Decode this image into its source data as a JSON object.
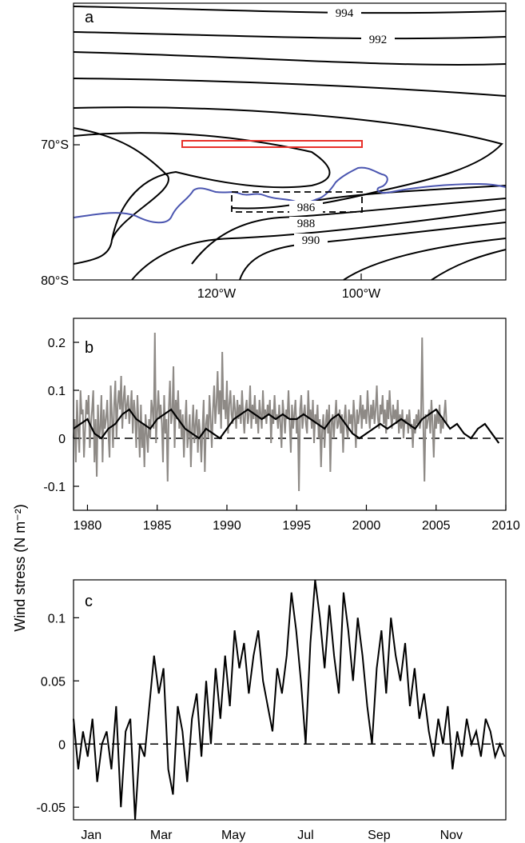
{
  "colors": {
    "contour": "#000000",
    "coast": "#4a55b0",
    "box": "#e8312a",
    "gray_series": "#8e8a86",
    "black_series": "#000000"
  },
  "shared_ylabel": "Wind stress (N m⁻²)",
  "chart_data": [
    {
      "panel": "a",
      "type": "contour-map",
      "lat_ticks": [
        "70°S",
        "80°S"
      ],
      "lon_ticks": [
        "120°W",
        "100°W"
      ],
      "contour_labels": [
        "994",
        "992",
        "986",
        "988",
        "990"
      ],
      "boxes": [
        {
          "style": "solid",
          "color": "red",
          "lon": [
            -125,
            -100
          ],
          "lat": [
            -70.2,
            -69.8
          ]
        },
        {
          "style": "dashed",
          "color": "black",
          "lon": [
            -118,
            -100
          ],
          "lat": [
            -75,
            -73.5
          ]
        }
      ]
    },
    {
      "panel": "b",
      "type": "line",
      "xlim": [
        1979,
        2010
      ],
      "ylim": [
        -0.15,
        0.25
      ],
      "xticks": [
        1980,
        1985,
        1990,
        1995,
        2000,
        2005,
        2010
      ],
      "yticks": [
        -0.1,
        0,
        0.1,
        0.2
      ],
      "ytick_labels": [
        "-0.1",
        "0",
        "0.1",
        "0.2"
      ],
      "zero_line": "dashed",
      "series": [
        {
          "role": "monthly",
          "color": "gray",
          "x_start": 1979.0,
          "x_step": 0.08333,
          "values": [
            0.0,
            0.04,
            -0.05,
            0.08,
            0.02,
            -0.03,
            0.1,
            0.05,
            0.06,
            -0.04,
            0.02,
            0.08,
            0.05,
            0.09,
            -0.02,
            0.03,
            0.06,
            0.1,
            -0.05,
            0.04,
            -0.08,
            0.07,
            0.0,
            0.02,
            0.09,
            -0.05,
            0.06,
            0.02,
            0.04,
            0.08,
            0.01,
            -0.04,
            0.11,
            0.05,
            -0.02,
            0.07,
            0.12,
            0.0,
            0.07,
            0.1,
            0.06,
            0.13,
            0.02,
            0.08,
            0.11,
            0.04,
            0.07,
            0.09,
            0.03,
            0.06,
            0.1,
            0.01,
            0.08,
            0.05,
            -0.02,
            0.09,
            0.03,
            -0.04,
            0.07,
            -0.02,
            0.03,
            -0.06,
            0.05,
            0.01,
            -0.03,
            0.04,
            0.0,
            0.08,
            0.06,
            0.02,
            0.22,
            -0.01,
            0.05,
            0.1,
            0.04,
            0.07,
            0.03,
            -0.05,
            0.09,
            0.01,
            0.04,
            -0.09,
            0.06,
            0.12,
            0.03,
            0.05,
            0.15,
            -0.02,
            0.08,
            0.04,
            0.1,
            0.02,
            0.06,
            0.0,
            0.05,
            -0.04,
            0.03,
            0.08,
            -0.02,
            0.01,
            0.05,
            -0.06,
            0.02,
            0.07,
            -0.01,
            0.03,
            0.06,
            -0.03,
            0.04,
            0.01,
            -0.05,
            0.02,
            0.08,
            -0.07,
            0.03,
            0.05,
            0.0,
            0.09,
            0.04,
            -0.02,
            0.06,
            0.11,
            0.03,
            0.07,
            0.14,
            0.05,
            0.1,
            0.02,
            0.18,
            0.06,
            0.08,
            0.04,
            0.12,
            0.01,
            0.07,
            0.1,
            0.05,
            0.03,
            0.09,
            0.06,
            0.02,
            0.08,
            0.04,
            0.07,
            0.03,
            0.1,
            0.05,
            0.01,
            0.06,
            0.08,
            0.03,
            0.05,
            0.11,
            0.02,
            0.07,
            0.04,
            0.09,
            0.03,
            0.06,
            0.01,
            0.08,
            0.05,
            0.02,
            0.1,
            0.04,
            0.06,
            0.03,
            0.07,
            0.05,
            0.08,
            -0.01,
            0.06,
            0.03,
            0.09,
            0.04,
            0.05,
            0.02,
            0.07,
            0.03,
            -0.02,
            0.08,
            0.05,
            0.01,
            0.06,
            0.04,
            0.1,
            0.03,
            -0.03,
            0.07,
            0.02,
            0.05,
            0.08,
            0.01,
            0.04,
            -0.11,
            0.06,
            0.09,
            0.02,
            0.05,
            0.07,
            0.03,
            0.01,
            0.1,
            0.04,
            0.06,
            0.02,
            0.08,
            -0.01,
            0.05,
            0.03,
            0.07,
            0.0,
            0.04,
            -0.06,
            0.02,
            0.05,
            -0.02,
            0.03,
            0.06,
            0.01,
            0.07,
            -0.07,
            0.03,
            0.05,
            0.0,
            0.04,
            0.08,
            0.02,
            0.03,
            0.06,
            0.01,
            0.05,
            -0.03,
            0.04,
            0.07,
            0.02,
            0.0,
            0.06,
            0.03,
            0.05,
            0.01,
            0.08,
            0.04,
            -0.02,
            0.06,
            0.03,
            0.05,
            0.09,
            0.02,
            0.07,
            0.04,
            0.06,
            0.03,
            0.1,
            0.05,
            0.02,
            0.07,
            0.04,
            0.08,
            0.03,
            0.06,
            0.11,
            0.04,
            0.02,
            0.07,
            0.05,
            0.09,
            0.03,
            0.06,
            0.01,
            0.08,
            0.04,
            0.1,
            0.05,
            0.02,
            0.07,
            0.04,
            0.06,
            0.03,
            0.08,
            0.01,
            0.05,
            0.02,
            0.06,
            0.0,
            0.04,
            0.03,
            0.05,
            0.01,
            0.06,
            0.02,
            0.03,
            -0.02,
            0.04,
            0.01,
            0.05,
            0.03,
            0.06,
            0.02,
            0.04,
            0.21,
            0.03,
            -0.09,
            0.05,
            0.02,
            0.04,
            0.06,
            0.01,
            0.08,
            0.03,
            -0.04,
            0.05,
            0.02,
            0.06,
            0.03,
            0.07,
            0.01,
            0.04,
            0.02,
            0.05,
            0.08,
            0.03
          ],
          "note_values_approx": true
        },
        {
          "role": "smoothed",
          "color": "black",
          "x": [
            1979,
            1979.5,
            1980,
            1980.5,
            1981,
            1981.5,
            1982,
            1982.5,
            1983,
            1983.5,
            1984,
            1984.5,
            1985,
            1985.5,
            1986,
            1986.5,
            1987,
            1987.5,
            1988,
            1988.5,
            1989,
            1989.5,
            1990,
            1990.5,
            1991,
            1991.5,
            1992,
            1992.5,
            1993,
            1993.5,
            1994,
            1994.5,
            1995,
            1995.5,
            1996,
            1996.5,
            1997,
            1997.5,
            1998,
            1998.5,
            1999,
            1999.5,
            2000,
            2000.5,
            2001,
            2001.5,
            2002,
            2002.5,
            2003,
            2003.5,
            2004,
            2004.5,
            2005,
            2005.5,
            2006,
            2006.5,
            2007,
            2007.5,
            2008,
            2008.5,
            2009,
            2009.5
          ],
          "values": [
            0.02,
            0.03,
            0.04,
            0.01,
            0.0,
            0.02,
            0.03,
            0.05,
            0.06,
            0.04,
            0.03,
            0.02,
            0.04,
            0.05,
            0.06,
            0.04,
            0.02,
            0.01,
            0.0,
            0.02,
            0.01,
            0.0,
            0.02,
            0.04,
            0.05,
            0.06,
            0.05,
            0.04,
            0.05,
            0.04,
            0.05,
            0.04,
            0.04,
            0.05,
            0.04,
            0.03,
            0.02,
            0.04,
            0.05,
            0.03,
            0.01,
            0.0,
            0.01,
            0.02,
            0.03,
            0.02,
            0.03,
            0.04,
            0.03,
            0.02,
            0.04,
            0.05,
            0.06,
            0.04,
            0.02,
            0.03,
            0.01,
            0.0,
            0.02,
            0.03,
            0.01,
            -0.01
          ]
        }
      ]
    },
    {
      "panel": "c",
      "type": "line",
      "xlim": [
        0,
        365
      ],
      "ylim": [
        -0.06,
        0.13
      ],
      "xtick_labels": [
        "Jan",
        "Mar",
        "May",
        "Jul",
        "Sep",
        "Nov"
      ],
      "yticks": [
        -0.05,
        0,
        0.05,
        0.1
      ],
      "ytick_labels": [
        "-0.05",
        "0",
        "0.05",
        "0.1"
      ],
      "zero_line": "dashed",
      "series": [
        {
          "role": "daily-climatology",
          "color": "black",
          "x": [
            0,
            4,
            8,
            12,
            16,
            20,
            24,
            28,
            32,
            36,
            40,
            44,
            48,
            52,
            56,
            60,
            64,
            68,
            72,
            76,
            80,
            84,
            88,
            92,
            96,
            100,
            104,
            108,
            112,
            116,
            120,
            124,
            128,
            132,
            136,
            140,
            144,
            148,
            152,
            156,
            160,
            164,
            168,
            172,
            176,
            180,
            184,
            188,
            192,
            196,
            200,
            204,
            208,
            212,
            216,
            220,
            224,
            228,
            232,
            236,
            240,
            244,
            248,
            252,
            256,
            260,
            264,
            268,
            272,
            276,
            280,
            284,
            288,
            292,
            296,
            300,
            304,
            308,
            312,
            316,
            320,
            324,
            328,
            332,
            336,
            340,
            344,
            348,
            352,
            356,
            360,
            364
          ],
          "values": [
            0.02,
            -0.02,
            0.01,
            -0.01,
            0.02,
            -0.03,
            0.0,
            0.01,
            -0.02,
            0.03,
            -0.05,
            0.01,
            0.02,
            -0.06,
            0.0,
            -0.01,
            0.03,
            0.07,
            0.04,
            0.06,
            -0.02,
            -0.04,
            0.03,
            0.01,
            -0.03,
            0.02,
            0.04,
            -0.01,
            0.05,
            0.0,
            0.06,
            0.02,
            0.07,
            0.03,
            0.09,
            0.06,
            0.08,
            0.04,
            0.07,
            0.09,
            0.05,
            0.03,
            0.01,
            0.06,
            0.04,
            0.07,
            0.12,
            0.09,
            0.05,
            0.0,
            0.08,
            0.13,
            0.1,
            0.06,
            0.11,
            0.07,
            0.04,
            0.12,
            0.09,
            0.05,
            0.1,
            0.07,
            0.03,
            0.0,
            0.06,
            0.09,
            0.04,
            0.1,
            0.07,
            0.05,
            0.08,
            0.03,
            0.06,
            0.02,
            0.04,
            0.01,
            -0.01,
            0.02,
            0.0,
            0.03,
            -0.02,
            0.01,
            -0.01,
            0.02,
            0.0,
            0.01,
            -0.01,
            0.02,
            0.01,
            -0.01,
            0.0,
            -0.01
          ]
        }
      ]
    }
  ]
}
